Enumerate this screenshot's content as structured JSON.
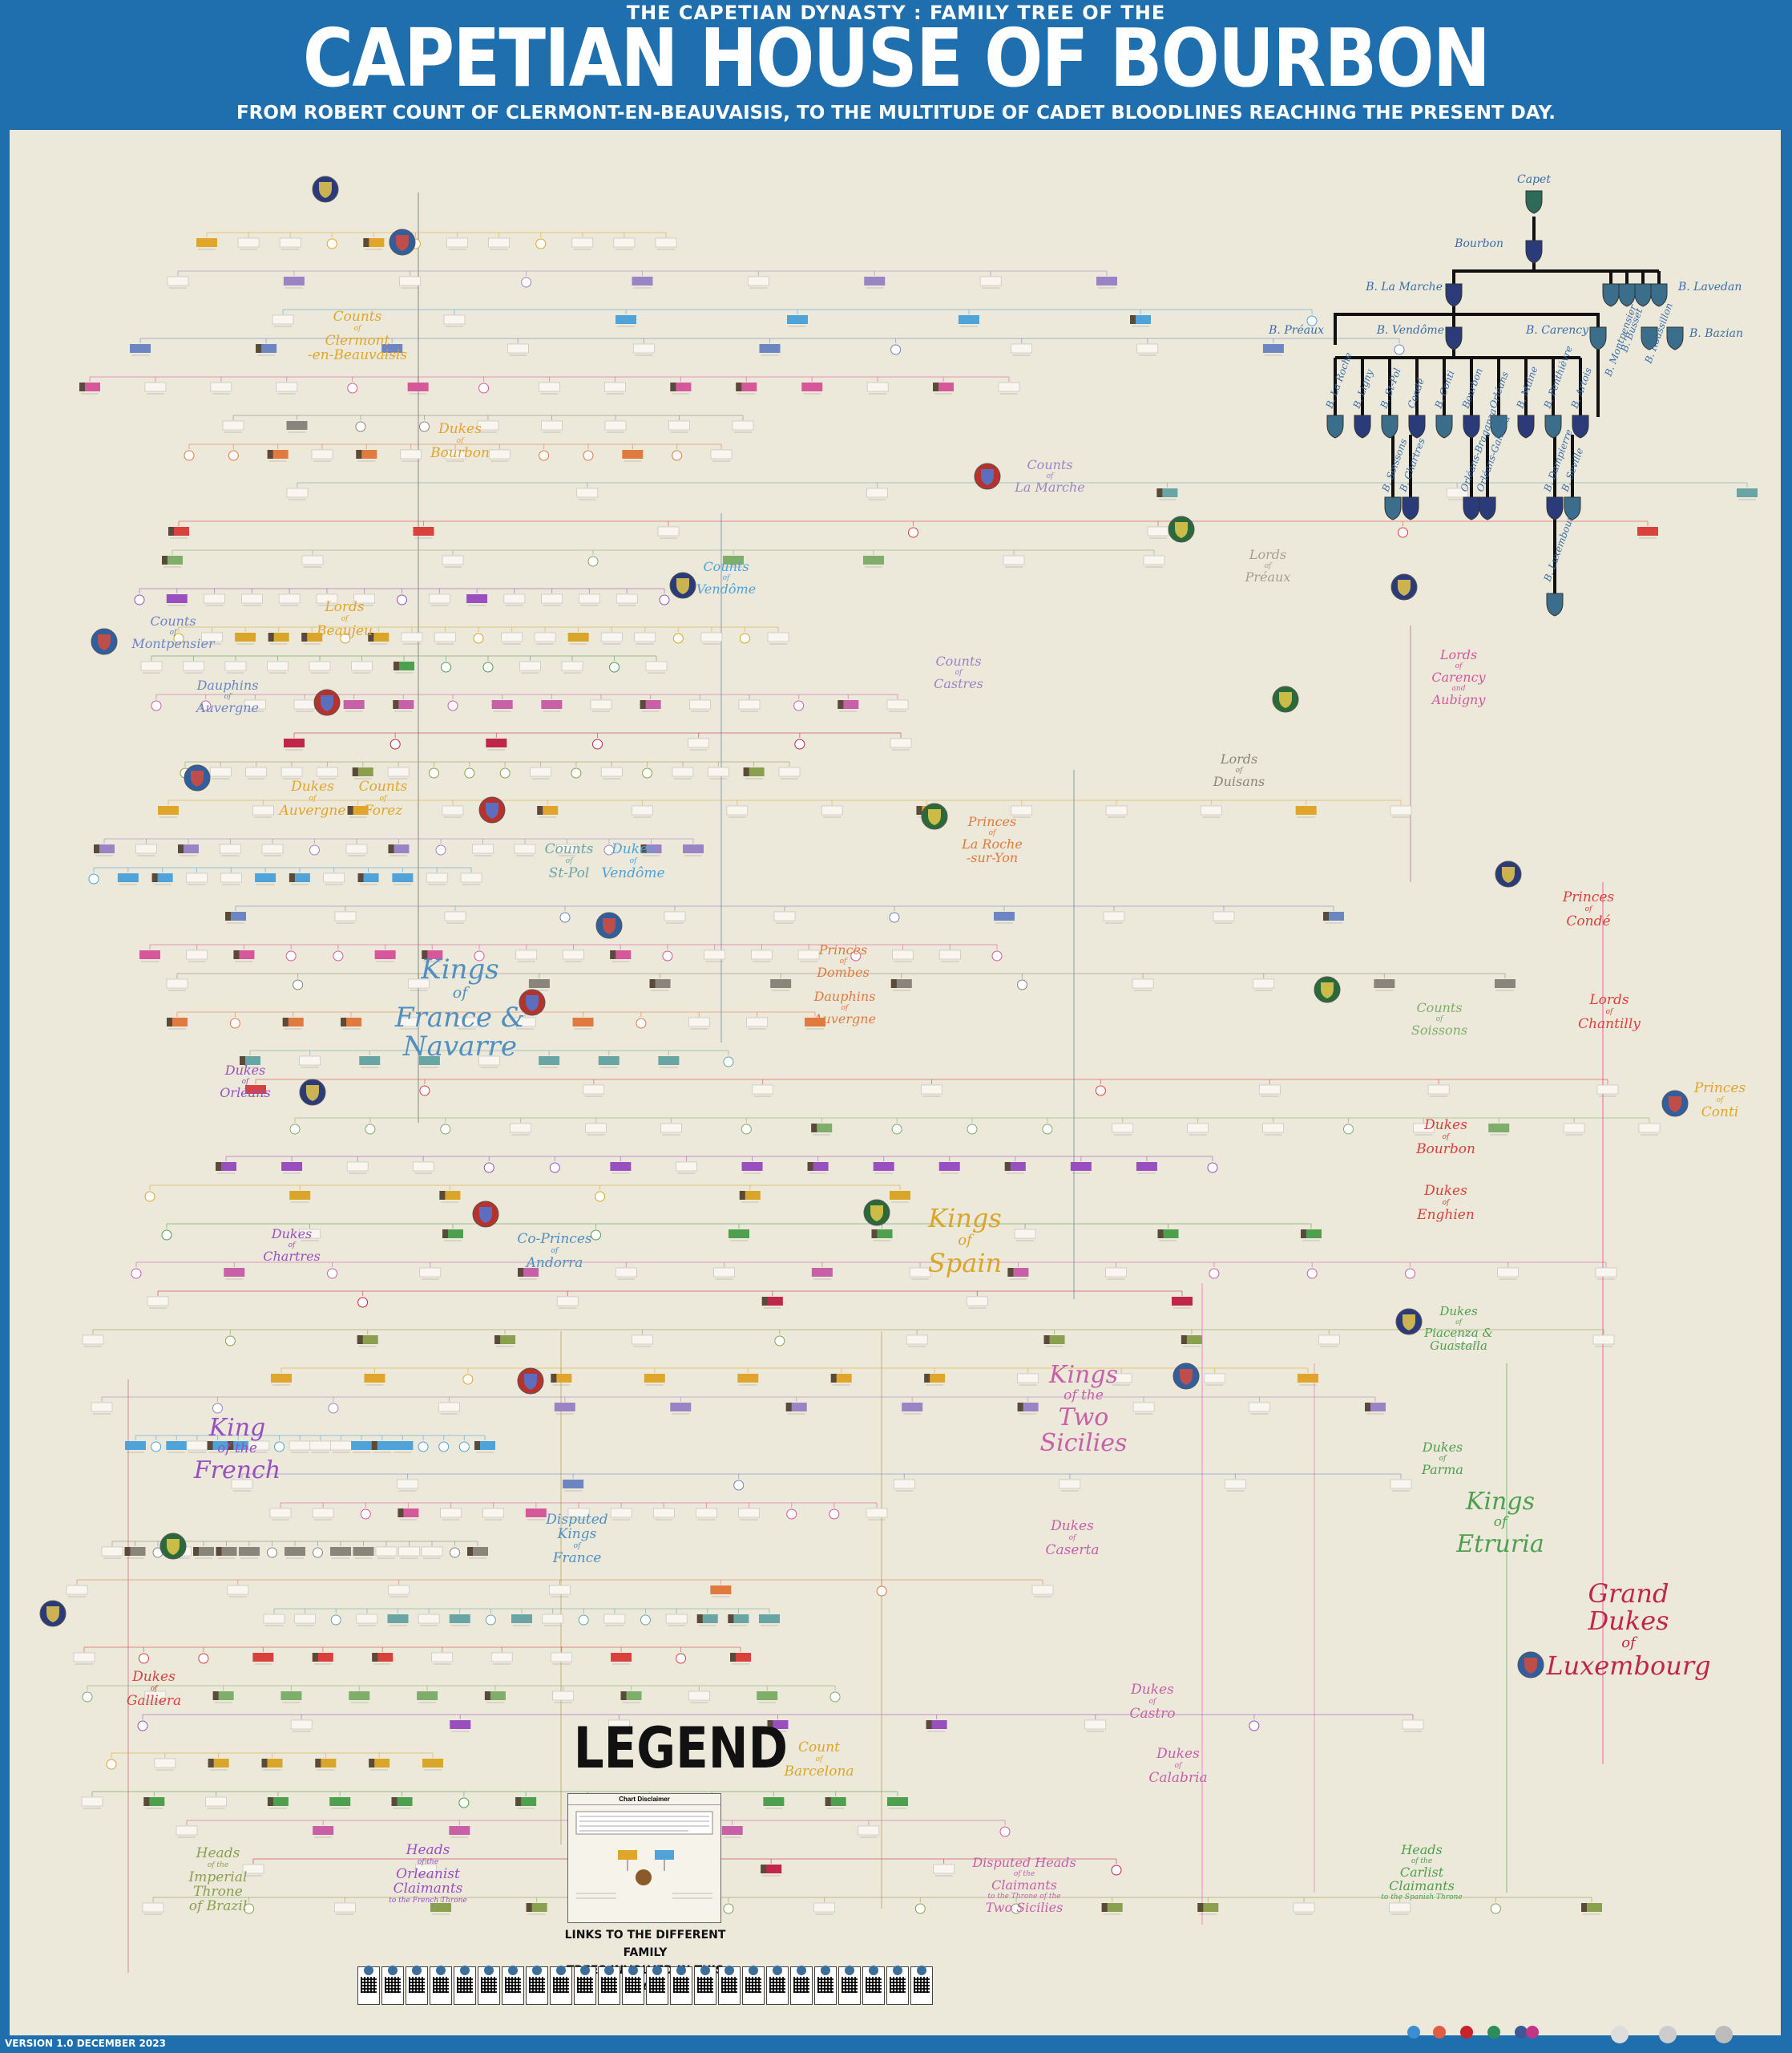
{
  "header": {
    "supertitle": "THE CAPETIAN DYNASTY : FAMILY TREE OF THE",
    "title": "CAPETIAN HOUSE OF BOURBON",
    "subtitle": "FROM ROBERT COUNT OF CLERMONT-EN-BEAUVAISIS, TO THE MULTITUDE OF CADET BLOODLINES REACHING THE PRESENT DAY."
  },
  "branches": [
    {
      "id": "clermont",
      "line1": "Counts",
      "line2": "of",
      "line3": "Clermont",
      "line4": "-en-Beauvaisis",
      "color": "#e2a52b"
    },
    {
      "id": "dukes-bourbon",
      "line1": "Dukes",
      "line2": "of",
      "line3": "Bourbon",
      "color": "#e2a52b"
    },
    {
      "id": "la-marche",
      "line1": "Counts",
      "line2": "of",
      "line3": "La Marche",
      "color": "#9b84c6"
    },
    {
      "id": "preaux",
      "line1": "Lords",
      "line2": "of",
      "line3": "Préaux",
      "color": "#a59f92"
    },
    {
      "id": "vendome",
      "line1": "Counts",
      "line2": "of",
      "line3": "Vendôme",
      "color": "#4fa3d9"
    },
    {
      "id": "montpensier",
      "line1": "Counts",
      "line2": "of",
      "line3": "Montpensier",
      "color": "#6b86c0"
    },
    {
      "id": "beaujeu",
      "line1": "Lords",
      "line2": "of",
      "line3": "Beaujeu",
      "color": "#e2a52b"
    },
    {
      "id": "dauphins-auvergne-1",
      "line1": "Dauphins",
      "line2": "of",
      "line3": "Auvergne",
      "color": "#6b86c0"
    },
    {
      "id": "castres",
      "line1": "Counts",
      "line2": "of",
      "line3": "Castres",
      "color": "#9b84c6"
    },
    {
      "id": "carency",
      "line1": "Lords",
      "line2": "of",
      "line3": "Carency",
      "line4": "and",
      "line5": "Aubigny",
      "color": "#d6589a"
    },
    {
      "id": "duisans",
      "line1": "Lords",
      "line2": "of",
      "line3": "Duisans",
      "color": "#8a857a"
    },
    {
      "id": "dukes-auvergne",
      "line1": "Dukes",
      "line2": "of",
      "line3": "Auvergne",
      "color": "#e2a52b"
    },
    {
      "id": "forez",
      "line1": "Counts",
      "line2": "of",
      "line3": "Forez",
      "color": "#e2a52b"
    },
    {
      "id": "la-roche",
      "line1": "Princes",
      "line2": "of",
      "line3": "La Roche",
      "line4": "-sur-Yon",
      "color": "#e07a3f"
    },
    {
      "id": "st-pol",
      "line1": "Counts",
      "line2": "of",
      "line3": "St-Pol",
      "color": "#6aa5a5"
    },
    {
      "id": "dukes-vendome",
      "line1": "Dukes",
      "line2": "of",
      "line3": "Vendôme",
      "color": "#4fa3d9"
    },
    {
      "id": "conde",
      "line1": "Princes",
      "line2": "of",
      "line3": "Condé",
      "color": "#d8413c"
    },
    {
      "id": "kings-france",
      "line1": "Kings",
      "line2": "of",
      "line3": "France &",
      "line4": "Navarre",
      "color": "#4f8fc2"
    },
    {
      "id": "dombes",
      "line1": "Princes",
      "line2": "of",
      "line3": "Dombes",
      "color": "#e07a3f"
    },
    {
      "id": "dauphins-auvergne-2",
      "line1": "Dauphins",
      "line2": "of",
      "line3": "Auvergne",
      "color": "#e07a3f"
    },
    {
      "id": "soissons",
      "line1": "Counts",
      "line2": "of",
      "line3": "Soissons",
      "color": "#7fae6a"
    },
    {
      "id": "chantilly",
      "line1": "Lords",
      "line2": "of",
      "line3": "Chantilly",
      "color": "#d8413c"
    },
    {
      "id": "orleans",
      "line1": "Dukes",
      "line2": "of",
      "line3": "Orléans",
      "color": "#9a4fc0"
    },
    {
      "id": "conti",
      "line1": "Princes",
      "line2": "of",
      "line3": "Conti",
      "color": "#e2a52b"
    },
    {
      "id": "dukes-bourbon-2",
      "line1": "Dukes",
      "line2": "of",
      "line3": "Bourbon",
      "color": "#d8413c"
    },
    {
      "id": "enghien",
      "line1": "Dukes",
      "line2": "of",
      "line3": "Enghien",
      "color": "#d8413c"
    },
    {
      "id": "chartres",
      "line1": "Dukes",
      "line2": "of",
      "line3": "Chartres",
      "color": "#9a4fc0"
    },
    {
      "id": "andorra",
      "line1": "Co-Princes",
      "line2": "of",
      "line3": "Andorra",
      "color": "#4f8fc2"
    },
    {
      "id": "kings-spain",
      "line1": "Kings",
      "line2": "of",
      "line3": "Spain",
      "color": "#d9a62a"
    },
    {
      "id": "parma-guastalla",
      "line1": "Dukes",
      "line2": "of",
      "line3": "Piacenza &",
      "line4": "Guastalla",
      "color": "#4ea04e"
    },
    {
      "id": "two-sicilies",
      "line1": "Kings",
      "line2": "of the",
      "line3": "Two",
      "line4": "Sicilies",
      "color": "#c860a8"
    },
    {
      "id": "king-french",
      "line1": "King",
      "line2": "of the",
      "line3": "French",
      "color": "#9a4fc0"
    },
    {
      "id": "parma",
      "line1": "Dukes",
      "line2": "of",
      "line3": "Parma",
      "color": "#4ea04e"
    },
    {
      "id": "etruria",
      "line1": "Kings",
      "line2": "of",
      "line3": "Etruria",
      "color": "#4ea04e"
    },
    {
      "id": "disputed-france",
      "line1": "Disputed",
      "line2": "Kings",
      "line3": "of",
      "line4": "France",
      "color": "#4f8fc2"
    },
    {
      "id": "caserta",
      "line1": "Dukes",
      "line2": "of",
      "line3": "Caserta",
      "color": "#c860a8"
    },
    {
      "id": "luxembourg",
      "line1": "Grand",
      "line2": "Dukes",
      "line3": "of",
      "line4": "Luxembourg",
      "color": "#c0264a"
    },
    {
      "id": "galliera",
      "line1": "Dukes",
      "line2": "of",
      "line3": "Galliera",
      "color": "#d8413c"
    },
    {
      "id": "castro",
      "line1": "Dukes",
      "line2": "of",
      "line3": "Castro",
      "color": "#c860a8"
    },
    {
      "id": "calabria",
      "line1": "Dukes",
      "line2": "of",
      "line3": "Calabria",
      "color": "#c860a8"
    },
    {
      "id": "barcelona",
      "line1": "Count",
      "line2": "of",
      "line3": "Barcelona",
      "color": "#d9a62a"
    },
    {
      "id": "brazil",
      "line1": "Heads",
      "line2": "of the",
      "line3": "Imperial",
      "line4": "Throne",
      "line5": "of Brazil",
      "color": "#8aa04e"
    },
    {
      "id": "orleanist",
      "line1": "Heads",
      "line2": "of the",
      "line3": "Orleanist",
      "line4": "Claimants",
      "line5": "to the French Throne",
      "color": "#9a4fc0"
    },
    {
      "id": "disputed-sicilies",
      "line1": "Disputed Heads",
      "line2": "of the",
      "line3": "Claimants",
      "line4": "to the Throne of the",
      "line5": "Two Sicilies",
      "color": "#c860a8"
    },
    {
      "id": "carlist",
      "line1": "Heads",
      "line2": "of the",
      "line3": "Carlist",
      "line4": "Claimants",
      "line5": "to the Spanish Throne",
      "color": "#4ea04e"
    }
  ],
  "inset": {
    "capet": "Capet",
    "bourbon": "Bourbon",
    "la_marche": "B. La Marche",
    "lavedan": "B. Lavedan",
    "preaux": "B. Préaux",
    "vendome": "B. Vendôme",
    "carency": "B. Carency",
    "montpensier": "B. Montpensier",
    "busset": "B. Busset",
    "roussillon": "B. Roussillon",
    "bazian": "B. Bazian",
    "row2": [
      "B. La Roche",
      "B. Ligny",
      "B. St-Pol",
      "Condé",
      "B. Conti",
      "Bourbon",
      "Orléans",
      "B. Maine",
      "B. Penthièvre",
      "B. Artois"
    ],
    "row3": [
      "B. Soissons",
      "B. Chartres",
      "Orléans-Braganza",
      "Orléans-Galliera",
      "B. Dampierre",
      "B. Seville"
    ],
    "row4": [
      "B. Luxembourg"
    ]
  },
  "legend": {
    "title": "LEGEND",
    "chart_disclaimer": "Chart Disclaimer",
    "links_title_1": "LINKS TO THE DIFFERENT FAMILY",
    "links_title_2": "TREES INVOLVED IN THIS CHART"
  },
  "footer": {
    "version": "VERSION 1.0 DECEMBER 2023"
  }
}
